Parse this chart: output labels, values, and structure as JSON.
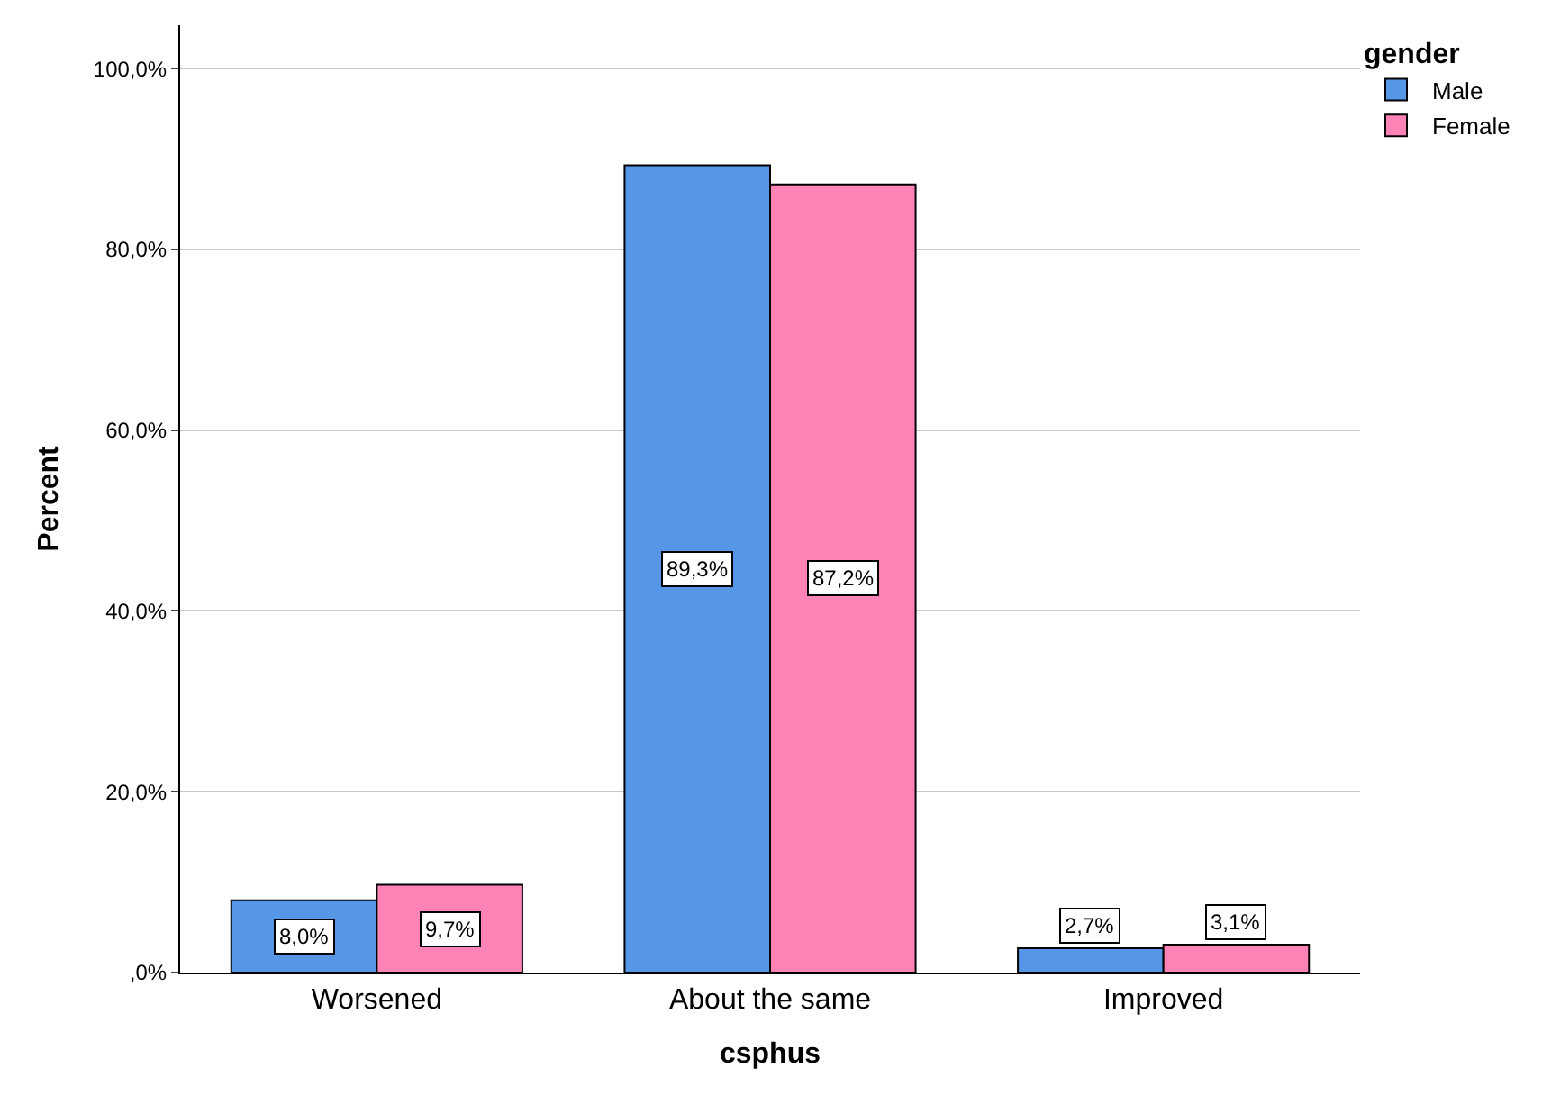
{
  "chart_data": {
    "type": "bar",
    "xlabel": "csphus",
    "ylabel": "Percent",
    "legend_title": "gender",
    "categories": [
      "Worsened",
      "About the same",
      "Improved"
    ],
    "series": [
      {
        "name": "Male",
        "color": "#5596e6",
        "values": [
          8.0,
          89.3,
          2.7
        ],
        "value_labels": [
          "8,0%",
          "89,3%",
          "2,7%"
        ]
      },
      {
        "name": "Female",
        "color": "#ff83b6",
        "values": [
          9.7,
          87.2,
          3.1
        ],
        "value_labels": [
          "9,7%",
          "87,2%",
          "3,1%"
        ]
      }
    ],
    "ylim": [
      0,
      104.8
    ],
    "yticks": [
      {
        "value": 0,
        "label": ",0%"
      },
      {
        "value": 20,
        "label": "20,0%"
      },
      {
        "value": 40,
        "label": "40,0%"
      },
      {
        "value": 60,
        "label": "60,0%"
      },
      {
        "value": 80,
        "label": "80,0%"
      },
      {
        "value": 100,
        "label": "100,0%"
      }
    ],
    "grid": "y",
    "legend": "top right"
  }
}
